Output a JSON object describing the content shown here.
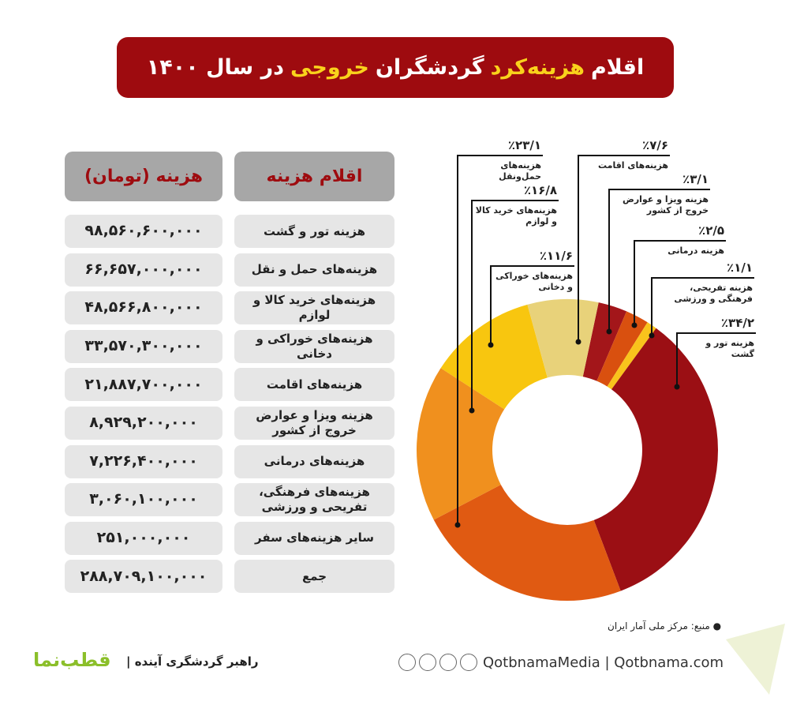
{
  "header": {
    "title": [
      "اقلام",
      "هزینه‌کرد",
      "گردشگران",
      "خروجی",
      "در سال ۱۴۰۰"
    ]
  },
  "table": {
    "columns": [
      "هزینه (تومان)",
      "اقلام هزینه"
    ],
    "rows": [
      [
        "۹۸,۵۶۰,۶۰۰,۰۰۰",
        "هزینه تور و گشت"
      ],
      [
        "۶۶,۶۵۷,۰۰۰,۰۰۰",
        "هزینه‌های حمل و نقل"
      ],
      [
        "۴۸,۵۶۶,۸۰۰,۰۰۰",
        "هزینه‌های خرید کالا و لوازم"
      ],
      [
        "۳۳,۵۷۰,۳۰۰,۰۰۰",
        "هزینه‌های خوراکی و دخانی"
      ],
      [
        "۲۱,۸۸۷,۷۰۰,۰۰۰",
        "هزینه‌های اقامت"
      ],
      [
        "۸,۹۲۹,۲۰۰,۰۰۰",
        "هزینه ویزا و عوارض خروج از کشور"
      ],
      [
        "۷,۲۲۶,۴۰۰,۰۰۰",
        "هزینه‌های درمانی"
      ],
      [
        "۳,۰۶۰,۱۰۰,۰۰۰",
        "هزینه‌های فرهنگی، تفریحی و ورزشی"
      ],
      [
        "۲۵۱,۰۰۰,۰۰۰",
        "سایر هزینه‌های سفر"
      ],
      [
        "۲۸۸,۷۰۹,۱۰۰,۰۰۰",
        "جمع"
      ]
    ]
  },
  "chart_data": {
    "type": "donut",
    "categories": [
      "هزینه تور و گشت",
      "هزینه‌های حمل‌ونقل",
      "هزینه‌های خرید کالا و لوازم",
      "هزینه‌های خوراکی و دخانی",
      "هزینه‌های اقامت",
      "هزینه ویزا و عوارض خروج از کشور",
      "هزینه درمانی",
      "هزینه تفریحی، فرهنگی و ورزشی"
    ],
    "values": [
      34.2,
      23.1,
      16.8,
      11.6,
      7.6,
      3.1,
      2.5,
      1.1
    ],
    "value_labels": [
      "٪۳۴/۲",
      "٪۲۳/۱",
      "٪۱۶/۸",
      "٪۱۱/۶",
      "٪۷/۶",
      "٪۳/۱",
      "٪۲/۵",
      "٪۱/۱"
    ],
    "colors": [
      "#9b0f14",
      "#e05a12",
      "#f0901e",
      "#f8c60f",
      "#e8d27a",
      "#a3161a",
      "#d9500f",
      "#f9c31c"
    ]
  },
  "footer": {
    "source": "منبع: مرکز ملی آمار ایران",
    "website": "QotbnamaMedia  |  Qotbnama.com",
    "slogan": "راهبر گردشگری آینده  |",
    "logo": "قطب‌نما"
  }
}
